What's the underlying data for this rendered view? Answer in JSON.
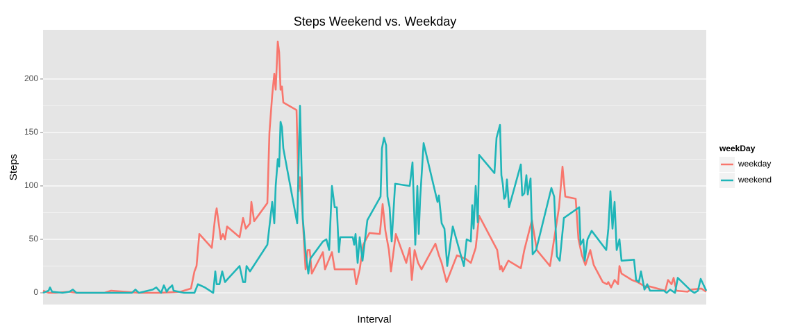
{
  "chart_data": {
    "type": "line",
    "title": "Steps Weekend vs. Weekday",
    "x_label": "Interval",
    "y_label": "Steps",
    "legend_title": "weekDay",
    "legend_position": "right",
    "xlim": [
      0,
      955
    ],
    "ylim": [
      -11,
      246
    ],
    "yticks": [
      0,
      50,
      100,
      150,
      200
    ],
    "grid": true,
    "series": [
      {
        "name": "weekday",
        "color": "#f8766d",
        "x": [
          0,
          8,
          18,
          38,
          48,
          88,
          98,
          138,
          168,
          198,
          208,
          213,
          218,
          221,
          225,
          243,
          248,
          250,
          254,
          256,
          259,
          262,
          265,
          283,
          288,
          292,
          298,
          300,
          304,
          323,
          326,
          330,
          333,
          335,
          338,
          340,
          342,
          344,
          346,
          365,
          368,
          370,
          373,
          378,
          381,
          384,
          387,
          403,
          406,
          416,
          420,
          448,
          451,
          456,
          461,
          470,
          485,
          489,
          493,
          498,
          501,
          508,
          523,
          528,
          531,
          535,
          540,
          545,
          550,
          565,
          570,
          574,
          581,
          596,
          608,
          616,
          623,
          628,
          654,
          658,
          660,
          662,
          670,
          688,
          693,
          704,
          711,
          730,
          743,
          748,
          752,
          767,
          771,
          776,
          781,
          788,
          793,
          806,
          812,
          814,
          818,
          823,
          828,
          830,
          833,
          848,
          856,
          869,
          873,
          896,
          900,
          905,
          908,
          912,
          928,
          933,
          948,
          955
        ],
        "values": [
          2,
          0,
          0,
          1,
          0,
          0,
          2,
          0,
          0,
          1,
          3,
          4,
          20,
          25,
          55,
          42,
          72,
          79,
          60,
          50,
          55,
          50,
          62,
          52,
          70,
          60,
          65,
          85,
          67,
          84,
          150,
          185,
          205,
          190,
          235,
          225,
          190,
          193,
          178,
          171,
          95,
          108,
          80,
          22,
          40,
          40,
          18,
          38,
          22,
          38,
          22,
          22,
          8,
          22,
          45,
          56,
          55,
          83,
          58,
          40,
          20,
          55,
          28,
          42,
          12,
          40,
          28,
          22,
          28,
          46,
          35,
          28,
          10,
          35,
          32,
          28,
          42,
          72,
          40,
          22,
          25,
          20,
          30,
          23,
          40,
          68,
          40,
          25,
          80,
          118,
          90,
          88,
          50,
          35,
          26,
          40,
          26,
          10,
          8,
          10,
          5,
          12,
          8,
          25,
          18,
          12,
          10,
          5,
          6,
          2,
          12,
          8,
          14,
          2,
          1,
          3,
          4,
          1
        ]
      },
      {
        "name": "weekend",
        "color": "#1fb5b8",
        "x": [
          0,
          8,
          10,
          13,
          28,
          38,
          43,
          48,
          88,
          128,
          133,
          138,
          158,
          163,
          170,
          174,
          178,
          181,
          186,
          188,
          203,
          218,
          223,
          233,
          245,
          248,
          250,
          254,
          258,
          262,
          266,
          283,
          288,
          291,
          293,
          298,
          303,
          323,
          330,
          333,
          335,
          338,
          340,
          342,
          344,
          346,
          366,
          370,
          374,
          378,
          382,
          385,
          403,
          408,
          412,
          416,
          420,
          423,
          426,
          428,
          446,
          448,
          450,
          453,
          456,
          460,
          467,
          486,
          488,
          491,
          494,
          496,
          499,
          502,
          507,
          528,
          532,
          536,
          539,
          541,
          543,
          548,
          568,
          570,
          574,
          578,
          582,
          590,
          606,
          610,
          616,
          618,
          620,
          623,
          626,
          628,
          650,
          653,
          658,
          660,
          662,
          664,
          666,
          668,
          671,
          688,
          690,
          693,
          696,
          698,
          702,
          705,
          710,
          732,
          736,
          740,
          744,
          750,
          772,
          774,
          778,
          780,
          784,
          790,
          811,
          814,
          817,
          820,
          823,
          826,
          830,
          833,
          851,
          854,
          858,
          861,
          864,
          866,
          870,
          874,
          894,
          898,
          903,
          910,
          914,
          933,
          938,
          943,
          947,
          955
        ],
        "values": [
          0,
          2,
          5,
          1,
          0,
          1,
          3,
          0,
          0,
          0,
          3,
          0,
          3,
          5,
          0,
          7,
          1,
          4,
          7,
          2,
          0,
          0,
          8,
          5,
          0,
          20,
          8,
          8,
          20,
          10,
          13,
          25,
          10,
          10,
          25,
          20,
          25,
          45,
          85,
          65,
          100,
          125,
          118,
          160,
          155,
          135,
          65,
          175,
          70,
          38,
          18,
          32,
          48,
          50,
          40,
          100,
          80,
          80,
          38,
          52,
          52,
          45,
          55,
          28,
          52,
          30,
          68,
          90,
          135,
          145,
          138,
          90,
          80,
          48,
          102,
          100,
          122,
          45,
          100,
          55,
          88,
          140,
          85,
          91,
          65,
          60,
          25,
          62,
          25,
          50,
          48,
          82,
          60,
          100,
          66,
          129,
          112,
          145,
          157,
          110,
          102,
          88,
          90,
          106,
          80,
          120,
          91,
          93,
          110,
          92,
          107,
          36,
          40,
          98,
          90,
          34,
          30,
          70,
          80,
          45,
          50,
          30,
          50,
          58,
          40,
          60,
          95,
          60,
          85,
          40,
          50,
          30,
          31,
          12,
          10,
          20,
          10,
          3,
          8,
          2,
          2,
          0,
          3,
          0,
          14,
          2,
          0,
          2,
          13,
          2
        ]
      }
    ]
  }
}
